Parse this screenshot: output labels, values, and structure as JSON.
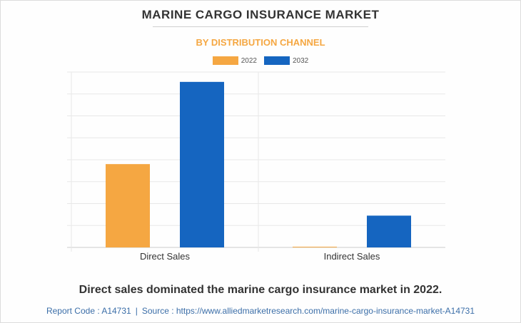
{
  "title": "MARINE CARGO INSURANCE MARKET",
  "subtitle": "BY DISTRIBUTION CHANNEL",
  "headline": "Direct sales dominated the marine cargo insurance market in 2022.",
  "footer": {
    "report_code": "Report Code : A14731",
    "separator": "|",
    "source": "Source : https://www.alliedmarketresearch.com/marine-cargo-insurance-market-A14731"
  },
  "colors": {
    "series_2022": "#f5a742",
    "series_2032": "#1565c0",
    "title": "#333333",
    "subtitle": "#f5a742",
    "footer": "#3b6ea8"
  },
  "chart_data": {
    "type": "bar",
    "title": "MARINE CARGO INSURANCE MARKET",
    "subtitle": "BY DISTRIBUTION CHANNEL",
    "categories": [
      "Direct Sales",
      "Indirect Sales"
    ],
    "series": [
      {
        "name": "2022",
        "values": [
          3.8,
          0.02
        ]
      },
      {
        "name": "2032",
        "values": [
          7.55,
          1.45
        ]
      }
    ],
    "xlabel": "",
    "ylabel": "",
    "ylim": [
      0,
      8
    ],
    "y_gridlines": 8,
    "y_tick_labels_shown": false,
    "grid": true,
    "legend_position": "top-center"
  }
}
